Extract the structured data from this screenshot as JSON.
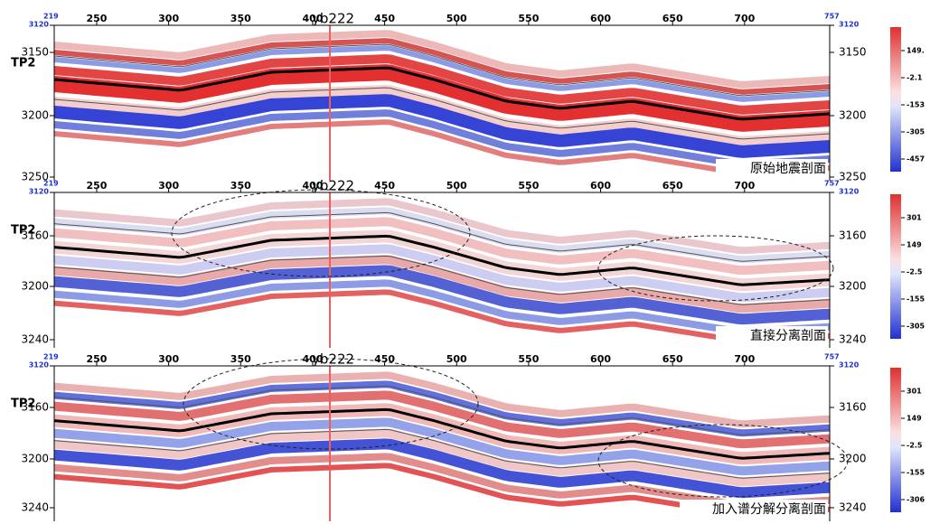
{
  "panels": [
    {
      "title": "原始地震剖面",
      "well": "yb222",
      "horizon": "TP2",
      "top_axis": {
        "start": "219",
        "end": "757",
        "ticks": [
          "250",
          "300",
          "350",
          "400",
          "450",
          "500",
          "550",
          "600",
          "650",
          "700"
        ]
      },
      "left_axis": [
        "3120",
        "3150",
        "3200",
        "3250"
      ],
      "right_axis": [
        "3120",
        "3150",
        "3200",
        "3250"
      ],
      "colorbar": [
        "149.",
        "-2.1",
        "-153",
        "-305",
        "-457"
      ]
    },
    {
      "title": "直接分离剖面",
      "well": "yb222",
      "horizon": "TP2",
      "top_axis": {
        "start": "219",
        "end": "757",
        "ticks": [
          "250",
          "300",
          "350",
          "400",
          "450",
          "500",
          "550",
          "600",
          "650",
          "700"
        ]
      },
      "left_axis": [
        "3120",
        "3160",
        "3200",
        "3240"
      ],
      "right_axis": [
        "3120",
        "3160",
        "3200",
        "3240"
      ],
      "colorbar": [
        "301",
        "149",
        "-2.5",
        "-155",
        "-305"
      ]
    },
    {
      "title": "加入谱分解分离剖面",
      "well": "yb222",
      "horizon": "TP2",
      "top_axis": {
        "start": "219",
        "end": "757",
        "ticks": [
          "250",
          "300",
          "350",
          "400",
          "450",
          "500",
          "550",
          "600",
          "650",
          "700"
        ]
      },
      "left_axis": [
        "3120",
        "3160",
        "3200",
        "3240"
      ],
      "right_axis": [
        "3120",
        "3160",
        "3200",
        "3240"
      ],
      "colorbar": [
        "301",
        "149",
        "-2.5",
        "-155",
        "-306"
      ]
    }
  ]
}
